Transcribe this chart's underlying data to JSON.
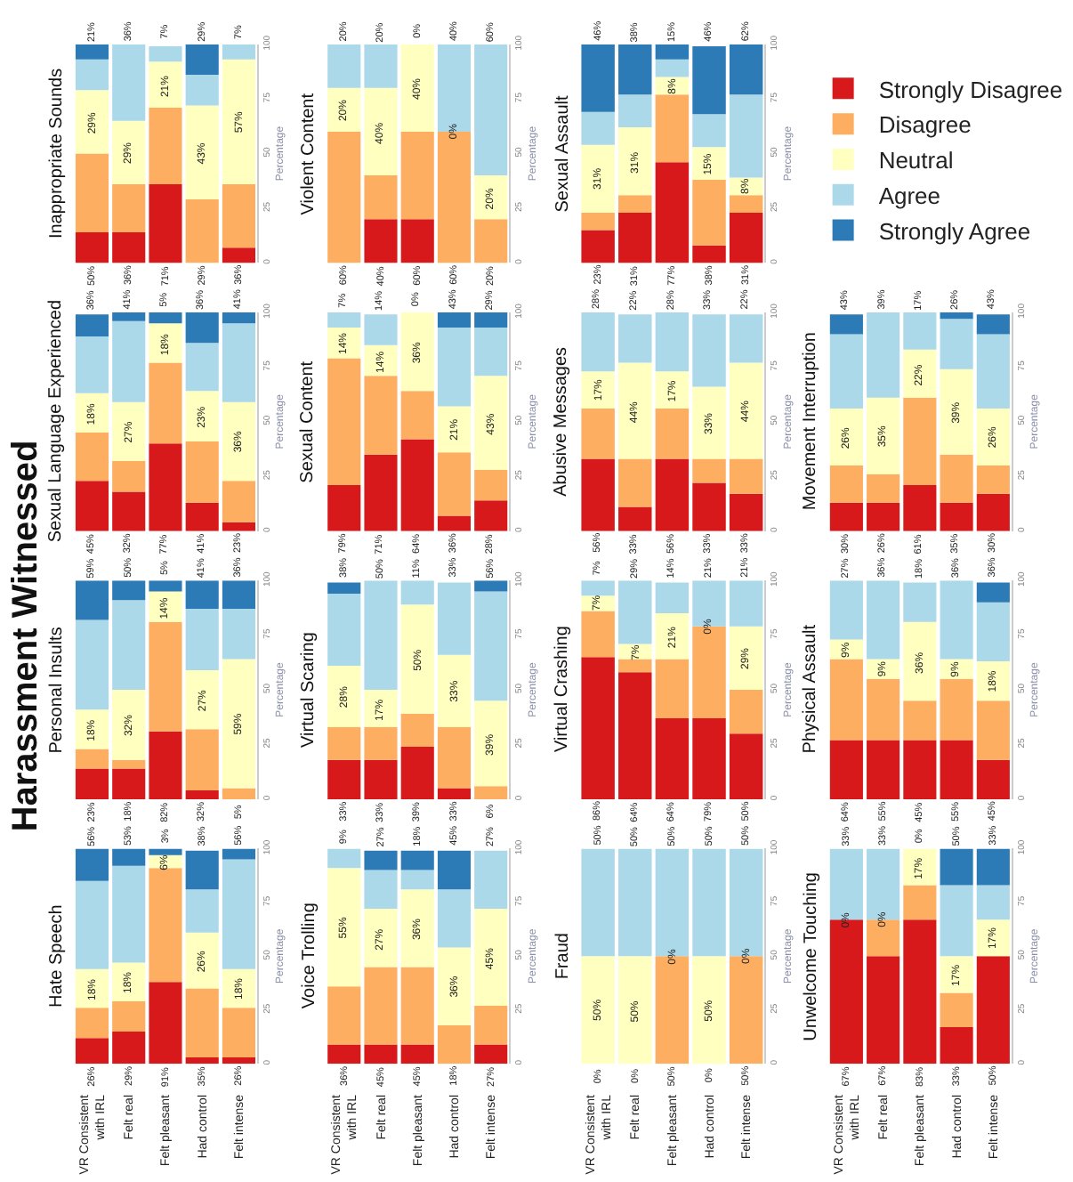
{
  "chart_data": [
    {
      "type": "bar",
      "title": "Inappropriate Sounds",
      "stacked": true,
      "tick_labels": "y",
      "legend": "right",
      "ylabel": "Percentage",
      "ylim": [
        0,
        100
      ],
      "yticks": [
        0,
        25,
        50,
        75,
        100
      ],
      "categories": [
        "VR Consistent with IRL",
        "Felt real",
        "Felt pleasant",
        "Had control",
        "Felt intense"
      ],
      "series": [
        {
          "name": "Strongly Disagree",
          "color": "#d7191c",
          "values": [
            14,
            14,
            36,
            0,
            7
          ]
        },
        {
          "name": "Disagree",
          "color": "#fdae61",
          "values": [
            36,
            22,
            35,
            29,
            29
          ]
        },
        {
          "name": "Neutral",
          "color": "#ffffbf",
          "values": [
            29,
            29,
            21,
            43,
            57
          ],
          "value_labels": [
            "29%",
            "29%",
            "21%",
            "43%",
            "57%"
          ]
        },
        {
          "name": "Agree",
          "color": "#abd9e9",
          "values": [
            14,
            35,
            7,
            14,
            7
          ]
        },
        {
          "name": "Strongly Agree",
          "color": "#2c7bb6",
          "values": [
            7,
            0,
            0,
            14,
            0
          ]
        }
      ],
      "annotations": [
        "50%",
        "36%",
        "71%",
        "29%",
        "36%",
        "21%",
        "36%",
        "7%",
        "29%",
        "7%"
      ]
    },
    {
      "type": "bar",
      "title": "Violent Content",
      "stacked": true,
      "tick_labels": "y",
      "ylabel": "Percentage",
      "ylim": [
        0,
        100
      ],
      "yticks": [
        0,
        25,
        50,
        75,
        100
      ],
      "categories": [
        "VR Consistent with IRL",
        "Felt real",
        "Felt pleasant",
        "Had control",
        "Felt intense"
      ],
      "series": [
        {
          "name": "Strongly Disagree",
          "color": "#d7191c",
          "values": [
            0,
            20,
            20,
            0,
            0
          ]
        },
        {
          "name": "Disagree",
          "color": "#fdae61",
          "values": [
            60,
            20,
            40,
            60,
            20
          ]
        },
        {
          "name": "Neutral",
          "color": "#ffffbf",
          "values": [
            20,
            40,
            40,
            0,
            20
          ],
          "value_labels": [
            "20%",
            "40%",
            "40%",
            null,
            "20%"
          ]
        },
        {
          "name": "Agree",
          "color": "#abd9e9",
          "values": [
            20,
            20,
            0,
            40,
            60
          ]
        },
        {
          "name": "Strongly Agree",
          "color": "#2c7bb6",
          "values": [
            0,
            0,
            0,
            0,
            0
          ]
        }
      ],
      "annotations": [
        "60%",
        "40%",
        "60%",
        "60%",
        "20%",
        "20%",
        "20%",
        "0%",
        "40%",
        "60%",
        {
          "text": "0%",
          "x": "Had control",
          "y": 60
        }
      ]
    },
    {
      "type": "bar",
      "title": "Sexual Assault",
      "stacked": true,
      "tick_labels": "y",
      "ylabel": "Percentage",
      "ylim": [
        0,
        100
      ],
      "yticks": [
        0,
        25,
        50,
        75,
        100
      ],
      "categories": [
        "VR Consistent with IRL",
        "Felt real",
        "Felt pleasant",
        "Had control",
        "Felt intense"
      ],
      "series": [
        {
          "name": "Strongly Disagree",
          "color": "#d7191c",
          "values": [
            15,
            23,
            46,
            8,
            23
          ]
        },
        {
          "name": "Disagree",
          "color": "#fdae61",
          "values": [
            8,
            8,
            31,
            30,
            8
          ]
        },
        {
          "name": "Neutral",
          "color": "#ffffbf",
          "values": [
            31,
            31,
            8,
            15,
            8
          ],
          "value_labels": [
            "31%",
            "31%",
            "8%",
            "15%",
            "8%"
          ]
        },
        {
          "name": "Agree",
          "color": "#abd9e9",
          "values": [
            15,
            15,
            8,
            15,
            38
          ]
        },
        {
          "name": "Strongly Agree",
          "color": "#2c7bb6",
          "values": [
            31,
            23,
            7,
            31,
            23
          ]
        }
      ],
      "annotations": [
        "23%",
        "31%",
        "77%",
        "38%",
        "31%",
        "46%",
        "38%",
        "15%",
        "46%",
        "62%"
      ]
    },
    {
      "type": "bar",
      "title": "Sexual Language Experienced",
      "stacked": true,
      "tick_labels": "y",
      "ylabel": "Percentage",
      "ylim": [
        0,
        100
      ],
      "yticks": [
        0,
        25,
        50,
        75,
        100
      ],
      "categories": [
        "VR Consistent with IRL",
        "Felt real",
        "Felt pleasant",
        "Had control",
        "Felt intense"
      ],
      "series": [
        {
          "name": "Strongly Disagree",
          "color": "#d7191c",
          "values": [
            23,
            18,
            40,
            13,
            4
          ]
        },
        {
          "name": "Disagree",
          "color": "#fdae61",
          "values": [
            22,
            14,
            37,
            28,
            19
          ]
        },
        {
          "name": "Neutral",
          "color": "#ffffbf",
          "values": [
            18,
            27,
            18,
            23,
            36
          ],
          "value_labels": [
            "18%",
            "27%",
            "18%",
            "23%",
            "36%"
          ]
        },
        {
          "name": "Agree",
          "color": "#abd9e9",
          "values": [
            26,
            37,
            0,
            22,
            36
          ]
        },
        {
          "name": "Strongly Agree",
          "color": "#2c7bb6",
          "values": [
            10,
            4,
            5,
            14,
            5
          ]
        }
      ],
      "annotations": [
        "45%",
        "32%",
        "77%",
        "41%",
        "23%",
        "36%",
        "41%",
        "5%",
        "36%",
        "41%"
      ]
    },
    {
      "type": "bar",
      "title": "Sexual Content",
      "stacked": true,
      "tick_labels": "y",
      "ylabel": "Percentage",
      "ylim": [
        0,
        100
      ],
      "yticks": [
        0,
        25,
        50,
        75,
        100
      ],
      "categories": [
        "VR Consistent with IRL",
        "Felt real",
        "Felt pleasant",
        "Had control",
        "Felt intense"
      ],
      "series": [
        {
          "name": "Strongly Disagree",
          "color": "#d7191c",
          "values": [
            21,
            35,
            42,
            7,
            14
          ]
        },
        {
          "name": "Disagree",
          "color": "#fdae61",
          "values": [
            58,
            36,
            22,
            29,
            14
          ]
        },
        {
          "name": "Neutral",
          "color": "#ffffbf",
          "values": [
            14,
            14,
            36,
            21,
            43
          ],
          "value_labels": [
            "14%",
            "14%",
            "36%",
            "21%",
            "43%"
          ]
        },
        {
          "name": "Agree",
          "color": "#abd9e9",
          "values": [
            7,
            14,
            0,
            36,
            22
          ]
        },
        {
          "name": "Strongly Agree",
          "color": "#2c7bb6",
          "values": [
            0,
            0,
            0,
            7,
            7
          ]
        }
      ],
      "annotations": [
        "79%",
        "71%",
        "64%",
        "36%",
        "28%",
        "7%",
        "14%",
        "0%",
        "43%",
        "29%"
      ]
    },
    {
      "type": "bar",
      "title": "Abusive Messages",
      "stacked": true,
      "tick_labels": "y",
      "ylabel": "Percentage",
      "ylim": [
        0,
        100
      ],
      "yticks": [
        0,
        25,
        50,
        75,
        100
      ],
      "categories": [
        "VR Consistent with IRL",
        "Felt real",
        "Felt pleasant",
        "Had control",
        "Felt intense"
      ],
      "series": [
        {
          "name": "Strongly Disagree",
          "color": "#d7191c",
          "values": [
            33,
            11,
            33,
            22,
            17
          ]
        },
        {
          "name": "Disagree",
          "color": "#fdae61",
          "values": [
            23,
            22,
            23,
            11,
            16
          ]
        },
        {
          "name": "Neutral",
          "color": "#ffffbf",
          "values": [
            17,
            44,
            17,
            33,
            44
          ],
          "value_labels": [
            "17%",
            "44%",
            "17%",
            "33%",
            "44%"
          ]
        },
        {
          "name": "Agree",
          "color": "#abd9e9",
          "values": [
            27,
            22,
            27,
            33,
            22
          ]
        },
        {
          "name": "Strongly Agree",
          "color": "#2c7bb6",
          "values": [
            0,
            0,
            0,
            0,
            0
          ]
        }
      ],
      "annotations": [
        "56%",
        "33%",
        "56%",
        "33%",
        "33%",
        "28%",
        "22%",
        "28%",
        "33%",
        "22%"
      ]
    },
    {
      "type": "bar",
      "title": "Movement Interruption",
      "stacked": true,
      "tick_labels": "y",
      "ylabel": "Percentage",
      "ylim": [
        0,
        100
      ],
      "yticks": [
        0,
        25,
        50,
        75,
        100
      ],
      "categories": [
        "VR Consistent with IRL",
        "Felt real",
        "Felt pleasant",
        "Had control",
        "Felt intense"
      ],
      "series": [
        {
          "name": "Strongly Disagree",
          "color": "#d7191c",
          "values": [
            13,
            13,
            21,
            13,
            17
          ]
        },
        {
          "name": "Disagree",
          "color": "#fdae61",
          "values": [
            17,
            13,
            40,
            22,
            13
          ]
        },
        {
          "name": "Neutral",
          "color": "#ffffbf",
          "values": [
            26,
            35,
            22,
            39,
            26
          ],
          "value_labels": [
            "26%",
            "35%",
            "22%",
            "39%",
            "26%"
          ]
        },
        {
          "name": "Agree",
          "color": "#abd9e9",
          "values": [
            34,
            39,
            17,
            23,
            34
          ]
        },
        {
          "name": "Strongly Agree",
          "color": "#2c7bb6",
          "values": [
            9,
            0,
            0,
            3,
            9
          ]
        }
      ],
      "annotations": [
        "30%",
        "26%",
        "61%",
        "35%",
        "30%",
        "43%",
        "39%",
        "17%",
        "26%",
        "43%"
      ]
    },
    {
      "type": "bar",
      "title": "Personal Insults",
      "stacked": true,
      "tick_labels": "y",
      "ylabel": "Percentage",
      "ylim": [
        0,
        100
      ],
      "yticks": [
        0,
        25,
        50,
        75,
        100
      ],
      "categories": [
        "VR Consistent with IRL",
        "Felt real",
        "Felt pleasant",
        "Had control",
        "Felt intense"
      ],
      "series": [
        {
          "name": "Strongly Disagree",
          "color": "#d7191c",
          "values": [
            14,
            14,
            31,
            4,
            0
          ]
        },
        {
          "name": "Disagree",
          "color": "#fdae61",
          "values": [
            9,
            4,
            50,
            28,
            5
          ]
        },
        {
          "name": "Neutral",
          "color": "#ffffbf",
          "values": [
            18,
            32,
            14,
            27,
            59
          ],
          "value_labels": [
            "18%",
            "32%",
            "14%",
            "27%",
            "59%"
          ]
        },
        {
          "name": "Agree",
          "color": "#abd9e9",
          "values": [
            41,
            41,
            0,
            28,
            23
          ]
        },
        {
          "name": "Strongly Agree",
          "color": "#2c7bb6",
          "values": [
            18,
            9,
            5,
            13,
            13
          ]
        }
      ],
      "annotations": [
        "23%",
        "18%",
        "82%",
        "32%",
        "5%",
        "59%",
        "50%",
        "5%",
        "41%",
        "36%"
      ]
    },
    {
      "type": "bar",
      "title": "Virtual Scaring",
      "stacked": true,
      "tick_labels": "y",
      "ylabel": "Percentage",
      "ylim": [
        0,
        100
      ],
      "yticks": [
        0,
        25,
        50,
        75,
        100
      ],
      "categories": [
        "VR Consistent with IRL",
        "Felt real",
        "Felt pleasant",
        "Had control",
        "Felt intense"
      ],
      "series": [
        {
          "name": "Strongly Disagree",
          "color": "#d7191c",
          "values": [
            18,
            18,
            24,
            5,
            0
          ]
        },
        {
          "name": "Disagree",
          "color": "#fdae61",
          "values": [
            15,
            15,
            15,
            28,
            6
          ]
        },
        {
          "name": "Neutral",
          "color": "#ffffbf",
          "values": [
            28,
            17,
            50,
            33,
            39
          ],
          "value_labels": [
            "28%",
            "17%",
            "50%",
            "33%",
            "39%"
          ]
        },
        {
          "name": "Agree",
          "color": "#abd9e9",
          "values": [
            33,
            50,
            11,
            33,
            50
          ]
        },
        {
          "name": "Strongly Agree",
          "color": "#2c7bb6",
          "values": [
            5,
            0,
            0,
            0,
            5
          ]
        }
      ],
      "annotations": [
        "33%",
        "33%",
        "39%",
        "33%",
        "6%",
        "38%",
        "50%",
        "11%",
        "33%",
        "56%"
      ]
    },
    {
      "type": "bar",
      "title": "Virtual Crashing",
      "stacked": true,
      "tick_labels": "y",
      "ylabel": "Percentage",
      "ylim": [
        0,
        100
      ],
      "yticks": [
        0,
        25,
        50,
        75,
        100
      ],
      "categories": [
        "VR Consistent with IRL",
        "Felt real",
        "Felt pleasant",
        "Had control",
        "Felt intense"
      ],
      "series": [
        {
          "name": "Strongly Disagree",
          "color": "#d7191c",
          "values": [
            65,
            58,
            37,
            37,
            30
          ]
        },
        {
          "name": "Disagree",
          "color": "#fdae61",
          "values": [
            21,
            6,
            27,
            42,
            20
          ]
        },
        {
          "name": "Neutral",
          "color": "#ffffbf",
          "values": [
            7,
            7,
            21,
            0,
            29
          ],
          "value_labels": [
            "7%",
            "7%",
            "21%",
            null,
            "29%"
          ]
        },
        {
          "name": "Agree",
          "color": "#abd9e9",
          "values": [
            7,
            29,
            14,
            21,
            21
          ]
        },
        {
          "name": "Strongly Agree",
          "color": "#2c7bb6",
          "values": [
            0,
            0,
            0,
            0,
            0
          ]
        }
      ],
      "annotations": [
        "86%",
        "64%",
        "64%",
        "79%",
        "50%",
        "7%",
        "29%",
        "14%",
        "21%",
        "21%",
        {
          "text": "0%",
          "x": "Had control",
          "y": 79
        }
      ]
    },
    {
      "type": "bar",
      "title": "Physical Assault",
      "stacked": true,
      "tick_labels": "y",
      "ylabel": "Percentage",
      "ylim": [
        0,
        100
      ],
      "yticks": [
        0,
        25,
        50,
        75,
        100
      ],
      "categories": [
        "VR Consistent with IRL",
        "Felt real",
        "Felt pleasant",
        "Had control",
        "Felt intense"
      ],
      "series": [
        {
          "name": "Strongly Disagree",
          "color": "#d7191c",
          "values": [
            27,
            27,
            27,
            27,
            18
          ]
        },
        {
          "name": "Disagree",
          "color": "#fdae61",
          "values": [
            37,
            28,
            18,
            28,
            27
          ]
        },
        {
          "name": "Neutral",
          "color": "#ffffbf",
          "values": [
            9,
            9,
            36,
            9,
            18
          ],
          "value_labels": [
            "9%",
            "9%",
            "36%",
            "9%",
            "18%"
          ]
        },
        {
          "name": "Agree",
          "color": "#abd9e9",
          "values": [
            27,
            36,
            18,
            36,
            27
          ]
        },
        {
          "name": "Strongly Agree",
          "color": "#2c7bb6",
          "values": [
            0,
            0,
            0,
            0,
            9
          ]
        }
      ],
      "annotations": [
        "64%",
        "55%",
        "45%",
        "55%",
        "45%",
        "27%",
        "36%",
        "18%",
        "36%",
        "36%"
      ]
    },
    {
      "type": "bar",
      "title": "Hate Speech",
      "stacked": true,
      "ylabel": "Percentage",
      "ylim": [
        0,
        100
      ],
      "yticks": [
        0,
        25,
        50,
        75,
        100
      ],
      "categories": [
        "VR Consistent with IRL",
        "Felt real",
        "Felt pleasant",
        "Had control",
        "Felt intense"
      ],
      "series": [
        {
          "name": "Strongly Disagree",
          "color": "#d7191c",
          "values": [
            12,
            15,
            38,
            3,
            3
          ]
        },
        {
          "name": "Disagree",
          "color": "#fdae61",
          "values": [
            14,
            14,
            53,
            32,
            23
          ]
        },
        {
          "name": "Neutral",
          "color": "#ffffbf",
          "values": [
            18,
            18,
            6,
            26,
            18
          ],
          "value_labels": [
            "18%",
            "18%",
            "6%",
            "26%",
            "18%"
          ]
        },
        {
          "name": "Agree",
          "color": "#abd9e9",
          "values": [
            41,
            45,
            0,
            20,
            51
          ]
        },
        {
          "name": "Strongly Agree",
          "color": "#2c7bb6",
          "values": [
            15,
            8,
            3,
            18,
            5
          ]
        }
      ],
      "annotations": [
        "26%",
        "29%",
        "91%",
        "35%",
        "26%",
        "56%",
        "53%",
        "3%",
        "38%",
        "56%"
      ]
    },
    {
      "type": "bar",
      "title": "Voice Trolling",
      "stacked": true,
      "ylabel": "Percentage",
      "ylim": [
        0,
        100
      ],
      "yticks": [
        0,
        25,
        50,
        75,
        100
      ],
      "categories": [
        "VR Consistent with IRL",
        "Felt real",
        "Felt pleasant",
        "Had control",
        "Felt intense"
      ],
      "series": [
        {
          "name": "Strongly Disagree",
          "color": "#d7191c",
          "values": [
            9,
            9,
            9,
            0,
            9
          ]
        },
        {
          "name": "Disagree",
          "color": "#fdae61",
          "values": [
            27,
            36,
            36,
            18,
            18
          ]
        },
        {
          "name": "Neutral",
          "color": "#ffffbf",
          "values": [
            55,
            27,
            36,
            36,
            45
          ],
          "value_labels": [
            "55%",
            "27%",
            "36%",
            "36%",
            "45%"
          ]
        },
        {
          "name": "Agree",
          "color": "#abd9e9",
          "values": [
            9,
            18,
            9,
            27,
            27
          ]
        },
        {
          "name": "Strongly Agree",
          "color": "#2c7bb6",
          "values": [
            0,
            9,
            9,
            18,
            0
          ]
        }
      ],
      "annotations": [
        "36%",
        "45%",
        "45%",
        "18%",
        "27%",
        "9%",
        "27%",
        "18%",
        "45%",
        "27%"
      ]
    },
    {
      "type": "bar",
      "title": "Fraud",
      "stacked": true,
      "ylabel": "Percentage",
      "ylim": [
        0,
        100
      ],
      "yticks": [
        0,
        25,
        50,
        75,
        100
      ],
      "categories": [
        "VR Consistent with IRL",
        "Felt real",
        "Felt pleasant",
        "Had control",
        "Felt intense"
      ],
      "series": [
        {
          "name": "Strongly Disagree",
          "color": "#d7191c",
          "values": [
            0,
            0,
            0,
            0,
            0
          ]
        },
        {
          "name": "Disagree",
          "color": "#fdae61",
          "values": [
            0,
            0,
            50,
            0,
            50
          ]
        },
        {
          "name": "Neutral",
          "color": "#ffffbf",
          "values": [
            50,
            50,
            0,
            50,
            0
          ],
          "value_labels": [
            "50%",
            "50%",
            null,
            "50%",
            null
          ]
        },
        {
          "name": "Agree",
          "color": "#abd9e9",
          "values": [
            50,
            50,
            50,
            50,
            50
          ]
        },
        {
          "name": "Strongly Agree",
          "color": "#2c7bb6",
          "values": [
            0,
            0,
            0,
            0,
            0
          ]
        }
      ],
      "annotations": [
        "0%",
        "0%",
        "50%",
        "0%",
        "50%",
        "50%",
        "50%",
        "50%",
        "50%",
        "50%",
        {
          "text": "0%",
          "x": "Felt pleasant",
          "y": 50
        },
        {
          "text": "0%",
          "x": "Felt intense",
          "y": 50
        }
      ]
    },
    {
      "type": "bar",
      "title": "Unwelcome Touching",
      "stacked": true,
      "ylabel": "Percentage",
      "ylim": [
        0,
        100
      ],
      "yticks": [
        0,
        25,
        50,
        75,
        100
      ],
      "categories": [
        "VR Consistent with IRL",
        "Felt real",
        "Felt pleasant",
        "Had control",
        "Felt intense"
      ],
      "series": [
        {
          "name": "Strongly Disagree",
          "color": "#d7191c",
          "values": [
            67,
            50,
            67,
            17,
            50
          ]
        },
        {
          "name": "Disagree",
          "color": "#fdae61",
          "values": [
            0,
            17,
            16,
            16,
            0
          ]
        },
        {
          "name": "Neutral",
          "color": "#ffffbf",
          "values": [
            0,
            0,
            17,
            17,
            17
          ],
          "value_labels": [
            null,
            null,
            "17%",
            "17%",
            "17%"
          ]
        },
        {
          "name": "Agree",
          "color": "#abd9e9",
          "values": [
            33,
            33,
            0,
            33,
            16
          ]
        },
        {
          "name": "Strongly Agree",
          "color": "#2c7bb6",
          "values": [
            0,
            0,
            0,
            17,
            17
          ]
        }
      ],
      "annotations": [
        "67%",
        "67%",
        "83%",
        "33%",
        "50%",
        "33%",
        "33%",
        "0%",
        "50%",
        "33%",
        {
          "text": "0%",
          "x": "VR Consistent with IRL",
          "y": 67
        },
        {
          "text": "0%",
          "x": "Felt real",
          "y": 67
        }
      ]
    },
    {
      "type": "other",
      "title": "Harassment Witnessed"
    }
  ]
}
